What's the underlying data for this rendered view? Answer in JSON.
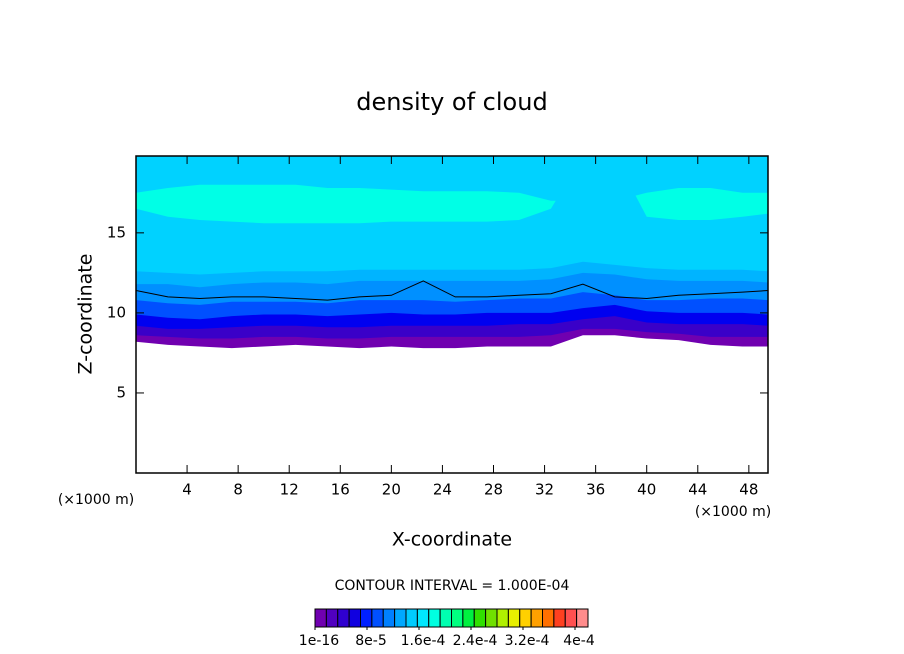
{
  "chart_data": {
    "type": "contour",
    "title": "density of cloud",
    "x_label": "X-coordinate",
    "y_label": "Z-coordinate",
    "x_unit": "(×1000 m)",
    "y_unit": "(×1000 m)",
    "x": [
      0,
      2.5,
      5,
      7.5,
      10,
      12.5,
      15,
      17.5,
      20,
      22.5,
      25,
      27.5,
      30,
      32.5,
      35,
      37.5,
      40,
      42.5,
      45,
      47.5,
      49.5
    ],
    "xlim": [
      0,
      49.5
    ],
    "ylim": [
      0,
      19.8
    ],
    "xticks": [
      4,
      8,
      12,
      16,
      20,
      24,
      28,
      32,
      36,
      40,
      44,
      48
    ],
    "yticks": [
      5,
      10,
      15
    ],
    "layers": [
      {
        "color": "#7000b0",
        "lower": [
          8.2,
          8.0,
          7.9,
          7.8,
          7.9,
          8.0,
          7.9,
          7.8,
          7.9,
          7.8,
          7.8,
          7.9,
          7.9,
          7.9,
          8.6,
          8.6,
          8.4,
          8.3,
          8.0,
          7.9,
          7.9
        ]
      },
      {
        "color": "#3a00c8",
        "lower": [
          8.6,
          8.5,
          8.4,
          8.4,
          8.5,
          8.5,
          8.4,
          8.4,
          8.5,
          8.5,
          8.5,
          8.5,
          8.5,
          8.6,
          9.0,
          9.0,
          8.8,
          8.7,
          8.5,
          8.5,
          8.5
        ]
      },
      {
        "color": "#0000f0",
        "lower": [
          9.2,
          9.0,
          9.0,
          9.1,
          9.2,
          9.2,
          9.1,
          9.1,
          9.2,
          9.2,
          9.2,
          9.2,
          9.3,
          9.3,
          9.6,
          9.8,
          9.4,
          9.3,
          9.3,
          9.3,
          9.2
        ]
      },
      {
        "color": "#0050ff",
        "lower": [
          9.9,
          9.7,
          9.6,
          9.8,
          9.9,
          9.9,
          9.8,
          9.9,
          10.0,
          9.9,
          9.9,
          10.0,
          10.0,
          10.0,
          10.3,
          10.5,
          10.1,
          10.0,
          10.0,
          10.0,
          9.9
        ]
      },
      {
        "color": "#0090ff",
        "lower": [
          10.8,
          10.6,
          10.5,
          10.7,
          10.7,
          10.7,
          10.6,
          10.8,
          10.8,
          10.8,
          10.7,
          10.8,
          10.9,
          10.9,
          11.3,
          11.1,
          10.8,
          10.8,
          10.9,
          10.9,
          10.8
        ]
      },
      {
        "color": "#00b4ff",
        "lower": [
          11.8,
          11.8,
          11.6,
          11.8,
          11.9,
          11.9,
          11.8,
          12.0,
          12.0,
          12.0,
          12.0,
          12.0,
          12.0,
          12.1,
          12.5,
          12.4,
          12.1,
          12.0,
          12.0,
          12.0,
          11.9
        ]
      },
      {
        "color": "#00d2ff",
        "lower": [
          12.6,
          12.5,
          12.4,
          12.5,
          12.6,
          12.6,
          12.6,
          12.7,
          12.7,
          12.7,
          12.7,
          12.7,
          12.7,
          12.8,
          13.2,
          13.0,
          12.8,
          12.7,
          12.7,
          12.7,
          12.6
        ]
      },
      {
        "color": "#00ffe6",
        "lower": [
          16.5,
          16.0,
          15.8,
          15.7,
          15.6,
          15.6,
          15.6,
          15.6,
          15.7,
          15.7,
          15.7,
          15.7,
          15.8,
          16.5,
          19.8,
          19.8,
          16.0,
          15.8,
          15.8,
          16.0,
          16.2
        ]
      },
      {
        "color": "#00d2ff",
        "lower": [
          17.5,
          17.8,
          18.0,
          18.0,
          18.0,
          18.0,
          17.8,
          17.8,
          17.7,
          17.6,
          17.6,
          17.6,
          17.5,
          17.0,
          17.0,
          17.0,
          17.5,
          17.8,
          17.8,
          17.5,
          17.5
        ]
      }
    ],
    "contour_line": {
      "color": "#000000",
      "values": [
        11.4,
        11.0,
        10.9,
        11.0,
        11.0,
        10.9,
        10.8,
        11.0,
        11.1,
        12.0,
        11.0,
        11.0,
        11.1,
        11.2,
        11.8,
        11.0,
        10.9,
        11.1,
        11.2,
        11.3,
        11.4
      ]
    },
    "contour_interval_label": "CONTOUR INTERVAL = 1.000E-04",
    "colorbar": {
      "colors": [
        "#7000b0",
        "#5000c0",
        "#3000d0",
        "#1000e0",
        "#0020ff",
        "#0050ff",
        "#0080ff",
        "#00a8ff",
        "#00ccff",
        "#00e8ff",
        "#00ffe0",
        "#00ffb0",
        "#00ff80",
        "#00f040",
        "#30e000",
        "#70e000",
        "#b0f000",
        "#e8f000",
        "#ffd000",
        "#ffa000",
        "#ff7000",
        "#ff4020",
        "#ff5050",
        "#ff8c8c"
      ],
      "lim": [
        0,
        0.00042
      ],
      "ticks": [
        {
          "value": 1e-16,
          "label": "1e-16"
        },
        {
          "value": 8e-05,
          "label": "8e-5"
        },
        {
          "value": 0.00016,
          "label": "1.6e-4"
        },
        {
          "value": 0.00024,
          "label": "2.4e-4"
        },
        {
          "value": 0.00032,
          "label": "3.2e-4"
        },
        {
          "value": 0.0004,
          "label": "4e-4"
        }
      ]
    }
  }
}
